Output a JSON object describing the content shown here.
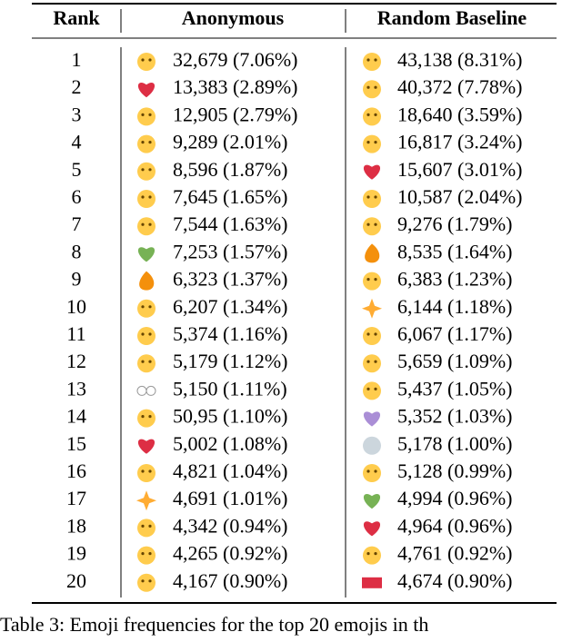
{
  "table": {
    "header": [
      "Rank",
      "Anonymous",
      "Random Baseline"
    ],
    "rows": [
      [
        1,
        "32,679 (7.06%)",
        "43,138 (8.31%)"
      ],
      [
        2,
        "13,383 (2.89%)",
        "40,372 (7.78%)"
      ],
      [
        3,
        "12,905 (2.79%)",
        "18,640 (3.59%)"
      ],
      [
        4,
        "9,289 (2.01%)",
        "16,817 (3.24%)"
      ],
      [
        5,
        "8,596 (1.87%)",
        "15,607 (3.01%)"
      ],
      [
        6,
        "7,645 (1.65%)",
        "10,587 (2.04%)"
      ],
      [
        7,
        "7,544 (1.63%)",
        "9,276 (1.79%)"
      ],
      [
        8,
        "7,253 (1.57%)",
        "8,535 (1.64%)"
      ],
      [
        9,
        "6,323 (1.37%)",
        "6,383 (1.23%)"
      ],
      [
        10,
        "6,207 (1.34%)",
        "6,144 (1.18%)"
      ],
      [
        11,
        "5,374 (1.16%)",
        "6,067 (1.17%)"
      ],
      [
        12,
        "5,179 (1.12%)",
        "5,659 (1.09%)"
      ],
      [
        13,
        "5,150 (1.11%)",
        "5,437 (1.05%)"
      ],
      [
        14,
        "50,95 (1.10%)",
        "5,352 (1.03%)"
      ],
      [
        15,
        "5,002 (1.08%)",
        "5,178 (1.00%)"
      ],
      [
        16,
        "4,821 (1.04%)",
        "5,128 (0.99%)"
      ],
      [
        17,
        "4,691 (1.01%)",
        "4,994 (0.96%)"
      ],
      [
        18,
        "4,342 (0.94%)",
        "4,964 (0.96%)"
      ],
      [
        19,
        "4,265 (0.92%)",
        "4,761 (0.92%)"
      ],
      [
        20,
        "4,167 (0.90%)",
        "4,674 (0.90%)"
      ]
    ]
  },
  "caption": "Table 3: Emoji frequencies for the top 20 emojis in th"
}
